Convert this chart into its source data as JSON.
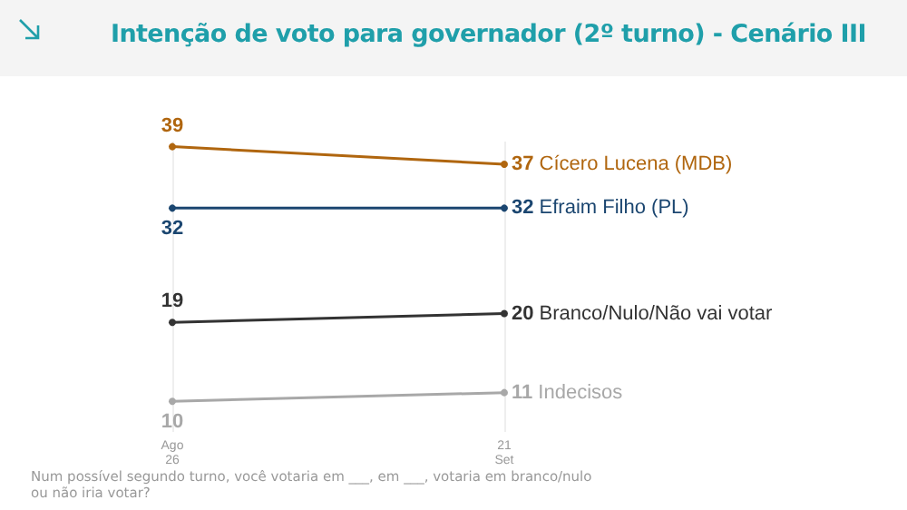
{
  "chart_data": {
    "type": "line",
    "title": "Intenção de voto para governador (2º turno) - Cenário III",
    "categories": [
      "Ago\n26",
      "21\nSet"
    ],
    "series": [
      {
        "name": "Cícero Lucena (MDB)",
        "color": "#b0660f",
        "values": [
          39,
          37
        ]
      },
      {
        "name": "Efraim Filho (PL)",
        "color": "#1b4670",
        "values": [
          32,
          32
        ]
      },
      {
        "name": "Branco/Nulo/Não vai votar",
        "color": "#333333",
        "values": [
          19,
          20
        ]
      },
      {
        "name": "Indecisos",
        "color": "#a8a8a8",
        "values": [
          10,
          11
        ]
      }
    ],
    "data_labels": true,
    "marker": "circle",
    "grid": "x",
    "annotations": [
      "Num possível segundo turno, você votaria em ___, em ___, votaria em branco/nulo ou não iria votar?"
    ]
  }
}
